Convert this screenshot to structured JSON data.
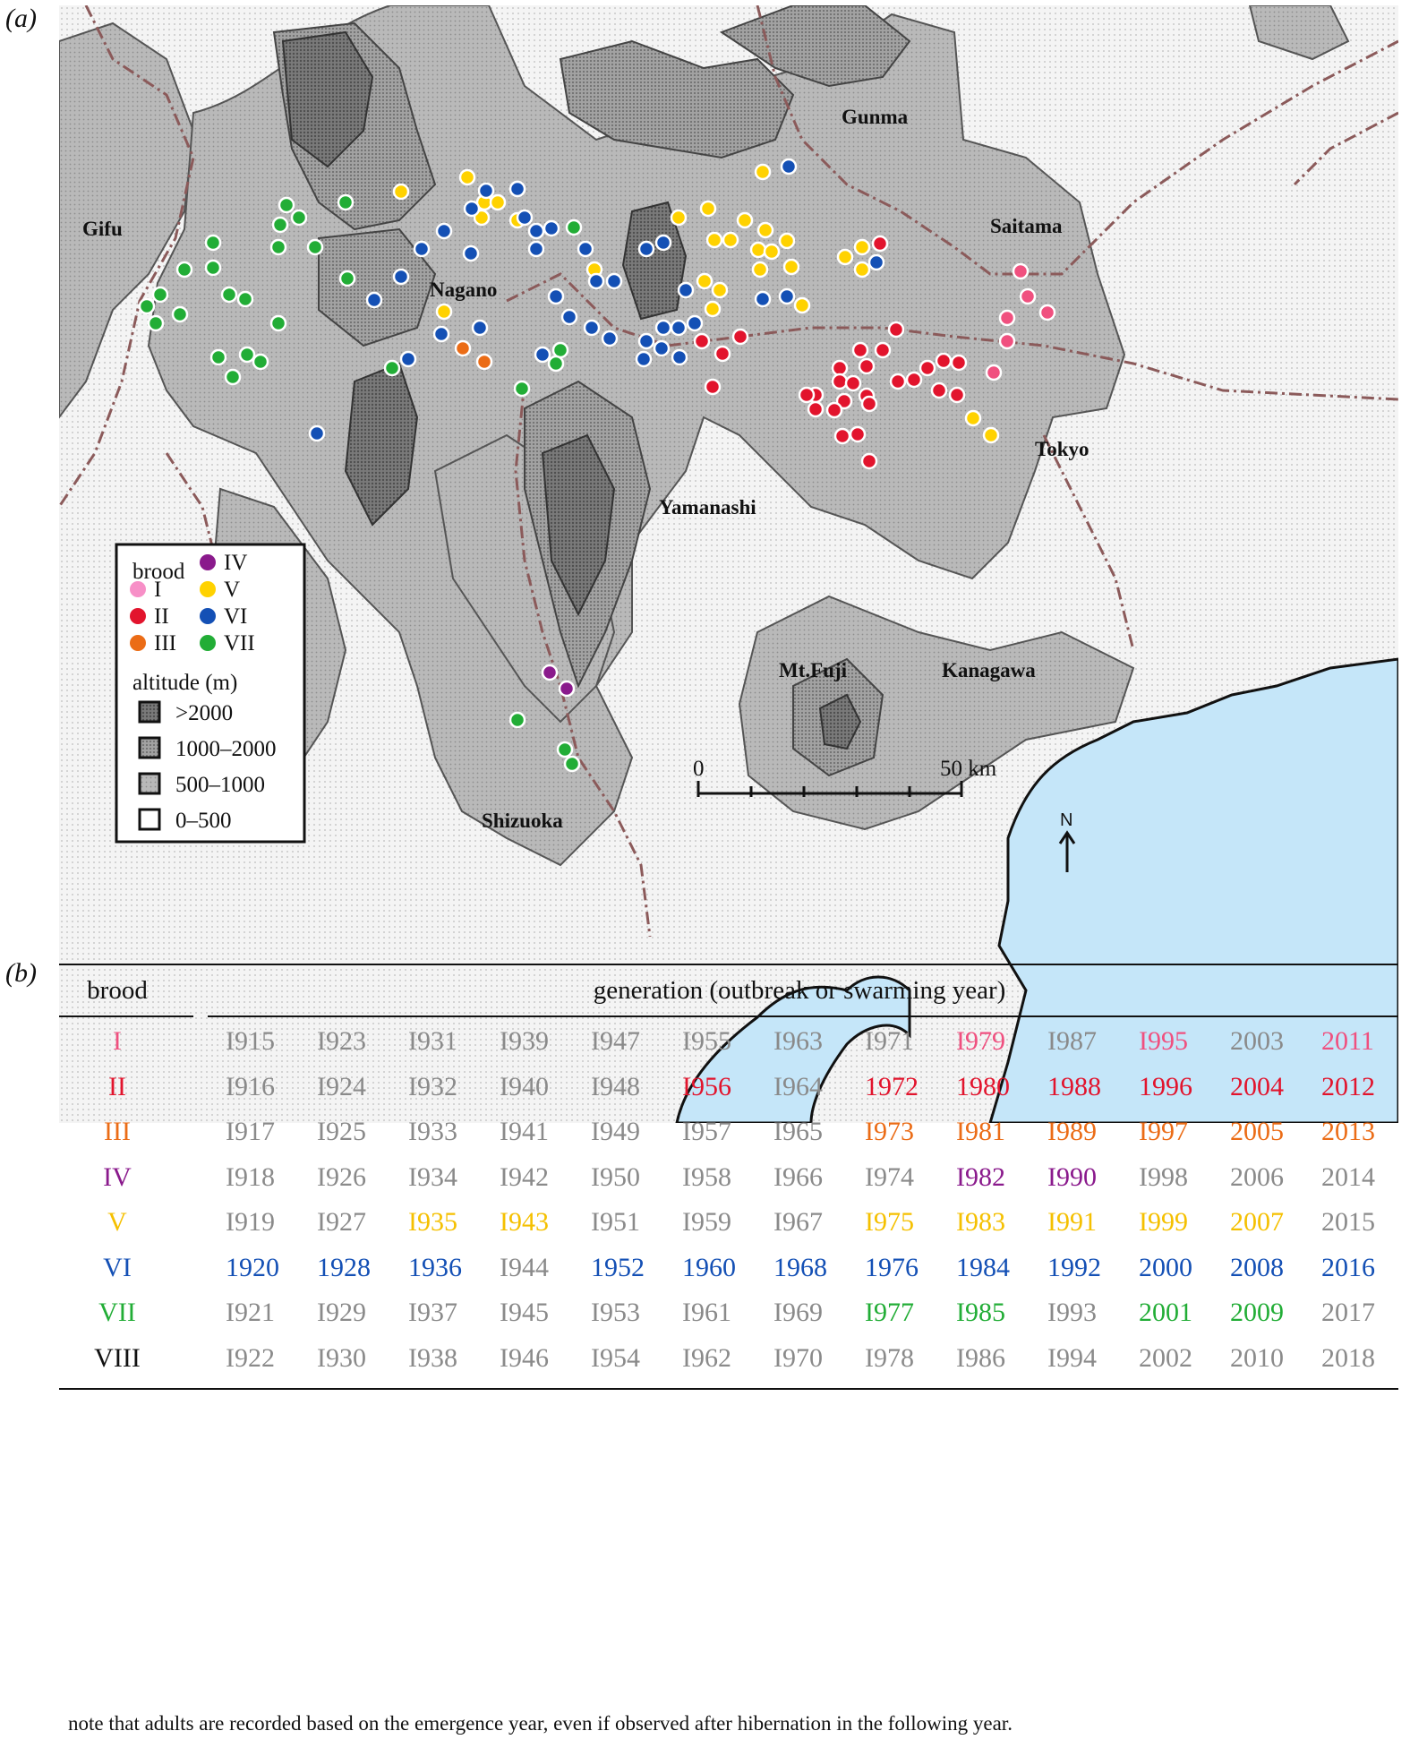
{
  "panels": {
    "a": "(a)",
    "b": "(b)"
  },
  "map": {
    "places": {
      "gunma": "Gunma",
      "saitama": "Saitama",
      "gifu": "Gifu",
      "nagano": "Nagano",
      "tokyo": "Tokyo",
      "yamanashi": "Yamanashi",
      "kanagawa": "Kanagawa",
      "mtfuji": "Mt.Fuji",
      "shizuoka": "Shizuoka"
    },
    "scale": {
      "start": "0",
      "end": "50 km"
    },
    "north": "N",
    "legend": {
      "brood_title": "brood",
      "broods": [
        {
          "id": "I",
          "label": "I",
          "color": "#f78fc7"
        },
        {
          "id": "II",
          "label": "II",
          "color": "#e2142d"
        },
        {
          "id": "III",
          "label": "III",
          "color": "#eb6c16"
        },
        {
          "id": "IV",
          "label": "IV",
          "color": "#8a1a8c"
        },
        {
          "id": "V",
          "label": "V",
          "color": "#ffd200"
        },
        {
          "id": "VI",
          "label": "VI",
          "color": "#1450b5"
        },
        {
          "id": "VII",
          "label": "VII",
          "color": "#22ad36"
        }
      ],
      "altitude_title": "altitude (m)",
      "altitude": [
        ">2000",
        "1000–2000",
        "500–1000",
        "0–500"
      ]
    },
    "colors": {
      "land_low": "#f3f3f3",
      "land_mid": "#b4b4b4",
      "land_high": "#9a9a9a",
      "land_top": "#6c6c6c",
      "sea": "#c5e6f9",
      "road": "#8b5a5a",
      "marker_I": "#f0507f"
    },
    "observations": {
      "I": [
        [
          1140,
          303
        ],
        [
          1148,
          331
        ],
        [
          1170,
          349
        ],
        [
          1125,
          355
        ],
        [
          1125,
          381
        ],
        [
          1110,
          416
        ]
      ],
      "II": [
        [
          983,
          272
        ],
        [
          1001,
          368
        ],
        [
          827,
          376
        ],
        [
          784,
          381
        ],
        [
          807,
          395
        ],
        [
          796,
          432
        ],
        [
          961,
          391
        ],
        [
          986,
          391
        ],
        [
          938,
          411
        ],
        [
          968,
          409
        ],
        [
          938,
          426
        ],
        [
          953,
          428
        ],
        [
          911,
          441
        ],
        [
          943,
          448
        ],
        [
          968,
          442
        ],
        [
          901,
          441
        ],
        [
          932,
          458
        ],
        [
          971,
          451
        ],
        [
          911,
          457
        ],
        [
          1003,
          426
        ],
        [
          1021,
          424
        ],
        [
          1036,
          411
        ],
        [
          1054,
          403
        ],
        [
          1071,
          405
        ],
        [
          1049,
          436
        ],
        [
          1069,
          441
        ],
        [
          941,
          487
        ],
        [
          958,
          485
        ],
        [
          971,
          515
        ]
      ],
      "III": [
        [
          517,
          389
        ],
        [
          541,
          404
        ]
      ],
      "IV": [
        [
          614,
          751
        ],
        [
          633,
          769
        ]
      ],
      "V": [
        [
          448,
          214
        ],
        [
          522,
          198
        ],
        [
          578,
          211
        ],
        [
          541,
          226
        ],
        [
          538,
          243
        ],
        [
          556,
          226
        ],
        [
          578,
          246
        ],
        [
          758,
          243
        ],
        [
          791,
          233
        ],
        [
          798,
          268
        ],
        [
          816,
          268
        ],
        [
          832,
          246
        ],
        [
          852,
          192
        ],
        [
          855,
          257
        ],
        [
          847,
          279
        ],
        [
          862,
          281
        ],
        [
          879,
          269
        ],
        [
          849,
          301
        ],
        [
          884,
          298
        ],
        [
          944,
          287
        ],
        [
          963,
          276
        ],
        [
          963,
          301
        ],
        [
          664,
          301
        ],
        [
          787,
          314
        ],
        [
          804,
          324
        ],
        [
          796,
          345
        ],
        [
          896,
          341
        ],
        [
          496,
          348
        ],
        [
          1087,
          467
        ],
        [
          1107,
          486
        ]
      ],
      "VI": [
        [
          881,
          186
        ],
        [
          543,
          213
        ],
        [
          527,
          233
        ],
        [
          578,
          211
        ],
        [
          586,
          243
        ],
        [
          599,
          258
        ],
        [
          616,
          255
        ],
        [
          496,
          258
        ],
        [
          471,
          278
        ],
        [
          448,
          309
        ],
        [
          418,
          335
        ],
        [
          526,
          283
        ],
        [
          599,
          278
        ],
        [
          654,
          278
        ],
        [
          722,
          278
        ],
        [
          741,
          271
        ],
        [
          979,
          293
        ],
        [
          666,
          314
        ],
        [
          686,
          314
        ],
        [
          621,
          331
        ],
        [
          766,
          324
        ],
        [
          852,
          334
        ],
        [
          879,
          331
        ],
        [
          636,
          354
        ],
        [
          661,
          366
        ],
        [
          681,
          378
        ],
        [
          722,
          381
        ],
        [
          741,
          366
        ],
        [
          758,
          366
        ],
        [
          776,
          361
        ],
        [
          739,
          389
        ],
        [
          759,
          399
        ],
        [
          719,
          401
        ],
        [
          606,
          396
        ],
        [
          536,
          366
        ],
        [
          493,
          373
        ],
        [
          456,
          401
        ],
        [
          354,
          484
        ]
      ],
      "VII": [
        [
          320,
          229
        ],
        [
          386,
          226
        ],
        [
          313,
          251
        ],
        [
          334,
          243
        ],
        [
          238,
          271
        ],
        [
          311,
          276
        ],
        [
          352,
          276
        ],
        [
          238,
          299
        ],
        [
          206,
          301
        ],
        [
          388,
          311
        ],
        [
          179,
          329
        ],
        [
          164,
          342
        ],
        [
          201,
          351
        ],
        [
          174,
          361
        ],
        [
          256,
          329
        ],
        [
          274,
          334
        ],
        [
          311,
          361
        ],
        [
          244,
          399
        ],
        [
          276,
          396
        ],
        [
          291,
          404
        ],
        [
          260,
          421
        ],
        [
          438,
          411
        ],
        [
          626,
          391
        ],
        [
          621,
          406
        ],
        [
          583,
          434
        ],
        [
          641,
          254
        ],
        [
          578,
          804
        ],
        [
          631,
          837
        ],
        [
          639,
          853
        ]
      ]
    }
  },
  "table": {
    "brood_header": "brood",
    "gen_header": "generation (outbreak or swarming year)",
    "rows": [
      {
        "brood": "I",
        "color": "#f0507f",
        "years": [
          {
            "y": "I915",
            "h": false
          },
          {
            "y": "I923",
            "h": false
          },
          {
            "y": "I931",
            "h": false
          },
          {
            "y": "I939",
            "h": false
          },
          {
            "y": "I947",
            "h": false
          },
          {
            "y": "I955",
            "h": false
          },
          {
            "y": "I963",
            "h": false
          },
          {
            "y": "I971",
            "h": false
          },
          {
            "y": "I979",
            "h": true
          },
          {
            "y": "I987",
            "h": false
          },
          {
            "y": "I995",
            "h": true
          },
          {
            "y": "2003",
            "h": false
          },
          {
            "y": "2011",
            "h": true
          }
        ]
      },
      {
        "brood": "II",
        "color": "#e2142d",
        "years": [
          {
            "y": "I916",
            "h": false
          },
          {
            "y": "I924",
            "h": false
          },
          {
            "y": "I932",
            "h": false
          },
          {
            "y": "I940",
            "h": false
          },
          {
            "y": "I948",
            "h": false
          },
          {
            "y": "I956",
            "h": true
          },
          {
            "y": "I964",
            "h": false
          },
          {
            "y": "1972",
            "h": true
          },
          {
            "y": "1980",
            "h": true
          },
          {
            "y": "1988",
            "h": true
          },
          {
            "y": "1996",
            "h": true
          },
          {
            "y": "2004",
            "h": true
          },
          {
            "y": "2012",
            "h": true
          }
        ]
      },
      {
        "brood": "III",
        "color": "#eb6c16",
        "years": [
          {
            "y": "I917",
            "h": false
          },
          {
            "y": "I925",
            "h": false
          },
          {
            "y": "I933",
            "h": false
          },
          {
            "y": "I941",
            "h": false
          },
          {
            "y": "I949",
            "h": false
          },
          {
            "y": "I957",
            "h": false
          },
          {
            "y": "I965",
            "h": false
          },
          {
            "y": "I973",
            "h": true
          },
          {
            "y": "I981",
            "h": true
          },
          {
            "y": "I989",
            "h": true
          },
          {
            "y": "I997",
            "h": true
          },
          {
            "y": "2005",
            "h": true
          },
          {
            "y": "2013",
            "h": true
          }
        ]
      },
      {
        "brood": "IV",
        "color": "#8a1a8c",
        "years": [
          {
            "y": "I918",
            "h": false
          },
          {
            "y": "I926",
            "h": false
          },
          {
            "y": "I934",
            "h": false
          },
          {
            "y": "I942",
            "h": false
          },
          {
            "y": "I950",
            "h": false
          },
          {
            "y": "I958",
            "h": false
          },
          {
            "y": "I966",
            "h": false
          },
          {
            "y": "I974",
            "h": false
          },
          {
            "y": "I982",
            "h": true
          },
          {
            "y": "I990",
            "h": true
          },
          {
            "y": "I998",
            "h": false
          },
          {
            "y": "2006",
            "h": false
          },
          {
            "y": "2014",
            "h": false
          }
        ]
      },
      {
        "brood": "V",
        "color": "#f5c000",
        "years": [
          {
            "y": "I919",
            "h": false
          },
          {
            "y": "I927",
            "h": false
          },
          {
            "y": "I935",
            "h": true
          },
          {
            "y": "I943",
            "h": true
          },
          {
            "y": "I951",
            "h": false
          },
          {
            "y": "I959",
            "h": false
          },
          {
            "y": "I967",
            "h": false
          },
          {
            "y": "I975",
            "h": true
          },
          {
            "y": "I983",
            "h": true
          },
          {
            "y": "I991",
            "h": true
          },
          {
            "y": "I999",
            "h": true
          },
          {
            "y": "2007",
            "h": true
          },
          {
            "y": "2015",
            "h": false
          }
        ]
      },
      {
        "brood": "VI",
        "color": "#1450b5",
        "years": [
          {
            "y": "1920",
            "h": true
          },
          {
            "y": "1928",
            "h": true
          },
          {
            "y": "1936",
            "h": true
          },
          {
            "y": "I944",
            "h": false
          },
          {
            "y": "1952",
            "h": true
          },
          {
            "y": "1960",
            "h": true
          },
          {
            "y": "1968",
            "h": true
          },
          {
            "y": "1976",
            "h": true
          },
          {
            "y": "1984",
            "h": true
          },
          {
            "y": "1992",
            "h": true
          },
          {
            "y": "2000",
            "h": true
          },
          {
            "y": "2008",
            "h": true
          },
          {
            "y": "2016",
            "h": true
          }
        ]
      },
      {
        "brood": "VII",
        "color": "#22ad36",
        "years": [
          {
            "y": "I921",
            "h": false
          },
          {
            "y": "I929",
            "h": false
          },
          {
            "y": "I937",
            "h": false
          },
          {
            "y": "I945",
            "h": false
          },
          {
            "y": "I953",
            "h": false
          },
          {
            "y": "I961",
            "h": false
          },
          {
            "y": "I969",
            "h": false
          },
          {
            "y": "I977",
            "h": true
          },
          {
            "y": "I985",
            "h": true
          },
          {
            "y": "I993",
            "h": false
          },
          {
            "y": "2001",
            "h": true
          },
          {
            "y": "2009",
            "h": true
          },
          {
            "y": "2017",
            "h": false
          }
        ]
      },
      {
        "brood": "VIII",
        "color": "#111111",
        "years": [
          {
            "y": "I922",
            "h": false
          },
          {
            "y": "I930",
            "h": false
          },
          {
            "y": "I938",
            "h": false
          },
          {
            "y": "I946",
            "h": false
          },
          {
            "y": "I954",
            "h": false
          },
          {
            "y": "I962",
            "h": false
          },
          {
            "y": "I970",
            "h": false
          },
          {
            "y": "I978",
            "h": false
          },
          {
            "y": "I986",
            "h": false
          },
          {
            "y": "I994",
            "h": false
          },
          {
            "y": "2002",
            "h": false
          },
          {
            "y": "2010",
            "h": false
          },
          {
            "y": "2018",
            "h": false
          }
        ]
      }
    ],
    "muted_color": "#8a8a8a",
    "note": "note that adults are recorded based on the emergence year, even if observed after hibernation in the following year."
  }
}
